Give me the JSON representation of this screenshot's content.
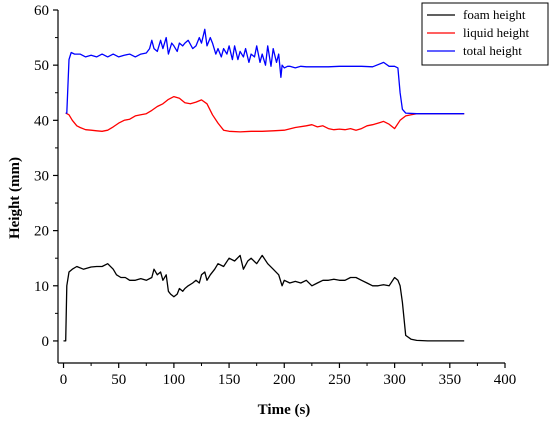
{
  "chart_data": {
    "type": "line",
    "title": "",
    "xlabel": "Time (s)",
    "ylabel": "Height (mm)",
    "xlim": [
      -5,
      400
    ],
    "ylim": [
      -4,
      60
    ],
    "xticks": [
      "0",
      "50",
      "100",
      "150",
      "200",
      "250",
      "300",
      "350",
      "400"
    ],
    "yticks": [
      "0",
      "10",
      "20",
      "30",
      "40",
      "50",
      "60"
    ],
    "grid": false,
    "legend_position": "top-right",
    "series": [
      {
        "name": "foam height",
        "color": "#000000",
        "x": [
          0,
          2,
          3,
          5,
          8,
          12,
          18,
          25,
          30,
          35,
          40,
          45,
          48,
          52,
          56,
          60,
          65,
          70,
          75,
          80,
          82,
          85,
          88,
          90,
          93,
          95,
          97,
          100,
          103,
          105,
          108,
          110,
          113,
          117,
          120,
          123,
          125,
          128,
          130,
          133,
          137,
          140,
          145,
          150,
          155,
          160,
          163,
          167,
          170,
          175,
          180,
          185,
          190,
          195,
          198,
          200,
          205,
          210,
          215,
          220,
          225,
          230,
          235,
          240,
          245,
          250,
          255,
          260,
          265,
          270,
          275,
          280,
          285,
          290,
          295,
          300,
          303,
          305,
          307,
          310,
          315,
          320,
          330,
          340,
          350,
          363
        ],
        "y": [
          0,
          0,
          10,
          12.5,
          13,
          13.5,
          13,
          13.4,
          13.5,
          13.5,
          14,
          13,
          12,
          11.5,
          11.5,
          11,
          11,
          11.3,
          11,
          11.5,
          13,
          12,
          12.5,
          11,
          12,
          9,
          8.5,
          8,
          8.5,
          9.5,
          9,
          9.5,
          10,
          10.5,
          11,
          10.5,
          12,
          12.5,
          11,
          12,
          13,
          14,
          13.5,
          15,
          14.5,
          15.5,
          13,
          14.5,
          15,
          14,
          15.5,
          14,
          13,
          12,
          10,
          11,
          10.5,
          10.8,
          10.5,
          11,
          10,
          10.5,
          11,
          11,
          11.2,
          11,
          11,
          11.5,
          11.5,
          11,
          10.5,
          10,
          10,
          10.2,
          10,
          11.5,
          11,
          10,
          7,
          1,
          0.3,
          0.1,
          0,
          0,
          0,
          0
        ]
      },
      {
        "name": "liquid height",
        "color": "#ff0000",
        "x": [
          2,
          5,
          8,
          12,
          15,
          20,
          25,
          30,
          35,
          40,
          45,
          50,
          55,
          60,
          65,
          70,
          75,
          80,
          85,
          90,
          95,
          100,
          105,
          110,
          115,
          120,
          125,
          130,
          135,
          140,
          145,
          150,
          160,
          170,
          180,
          190,
          200,
          210,
          220,
          225,
          230,
          235,
          240,
          245,
          250,
          255,
          260,
          265,
          270,
          275,
          280,
          285,
          290,
          295,
          300,
          305,
          310,
          315,
          320,
          330,
          340,
          350,
          363
        ],
        "y": [
          41.3,
          41,
          40,
          39,
          38.7,
          38.3,
          38.2,
          38.1,
          38,
          38.2,
          38.8,
          39.5,
          40,
          40.2,
          40.8,
          41,
          41.2,
          41.8,
          42.5,
          43,
          43.8,
          44.3,
          44,
          43.2,
          43,
          43.3,
          43.7,
          43,
          41,
          39.5,
          38.2,
          38,
          37.9,
          38,
          38,
          38.1,
          38.2,
          38.7,
          39,
          39.2,
          38.8,
          39,
          38.5,
          38.3,
          38.4,
          38.3,
          38.5,
          38.2,
          38.5,
          39,
          39.2,
          39.5,
          39.8,
          39.3,
          38.5,
          40,
          40.8,
          41,
          41.2,
          41.2,
          41.2,
          41.2,
          41.2
        ]
      },
      {
        "name": "total height",
        "color": "#0000ff",
        "x": [
          2,
          3,
          5,
          7,
          10,
          15,
          20,
          25,
          30,
          35,
          40,
          45,
          50,
          55,
          60,
          65,
          70,
          75,
          78,
          80,
          82,
          85,
          88,
          90,
          93,
          95,
          98,
          100,
          103,
          105,
          108,
          110,
          113,
          117,
          120,
          123,
          125,
          128,
          130,
          133,
          135,
          138,
          140,
          143,
          145,
          148,
          150,
          153,
          155,
          158,
          160,
          163,
          165,
          168,
          170,
          173,
          175,
          178,
          180,
          183,
          185,
          188,
          190,
          193,
          195,
          197,
          198,
          200,
          203,
          205,
          210,
          215,
          220,
          225,
          230,
          240,
          250,
          260,
          270,
          280,
          290,
          295,
          298,
          300,
          303,
          305,
          307,
          310,
          320,
          330,
          340,
          350,
          363
        ],
        "y": [
          41.3,
          41.3,
          51,
          52.3,
          52,
          52,
          51.5,
          51.8,
          51.5,
          52,
          51.5,
          52,
          51.5,
          51.8,
          52,
          51.5,
          52,
          52.2,
          53,
          54.5,
          53,
          52.5,
          54.5,
          53,
          55,
          52,
          54,
          53.5,
          52.5,
          54,
          53.5,
          54,
          54.5,
          53,
          53.5,
          55,
          54,
          56.5,
          53.5,
          55,
          54,
          52,
          53,
          51.5,
          53,
          52,
          53.5,
          51,
          53.5,
          51,
          52.5,
          51.5,
          53,
          50.5,
          52,
          51.5,
          53.5,
          50.5,
          52,
          50,
          53.5,
          49.8,
          53,
          50.5,
          52,
          47.8,
          50,
          49.5,
          49.8,
          49.8,
          49.5,
          49.8,
          49.7,
          49.7,
          49.7,
          49.7,
          49.8,
          49.8,
          49.8,
          49.7,
          50.5,
          49.8,
          49.8,
          49.8,
          49.5,
          45,
          42,
          41.3,
          41.2,
          41.2,
          41.2,
          41.2,
          41.2
        ]
      }
    ]
  }
}
